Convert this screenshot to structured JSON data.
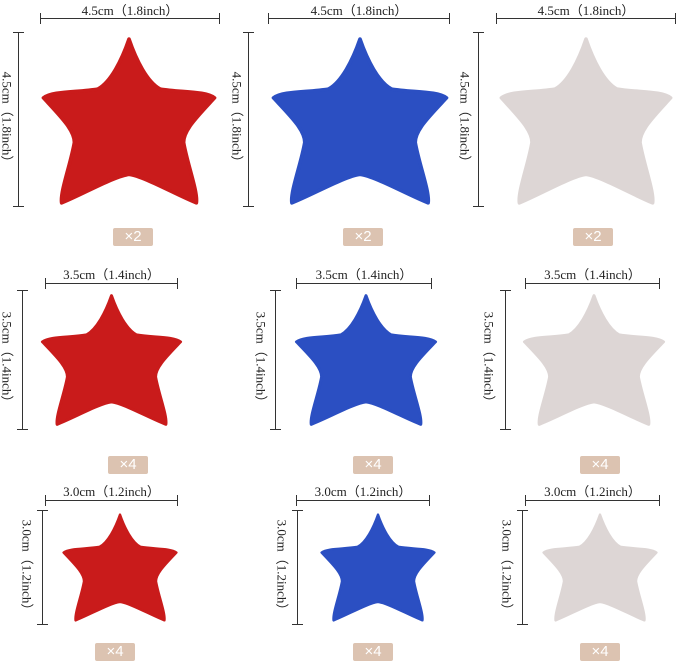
{
  "colors": {
    "red": "#c91b1b",
    "blue": "#2b4fc2",
    "silver": "#ddd6d5"
  },
  "rows": [
    {
      "size_label": "4.5cm（1.8inch）",
      "count": "×2"
    },
    {
      "size_label": "3.5cm（1.4inch）",
      "count": "×4"
    },
    {
      "size_label": "3.0cm（1.2inch）",
      "count": "×4"
    }
  ],
  "columns": [
    "red",
    "blue",
    "silver"
  ]
}
